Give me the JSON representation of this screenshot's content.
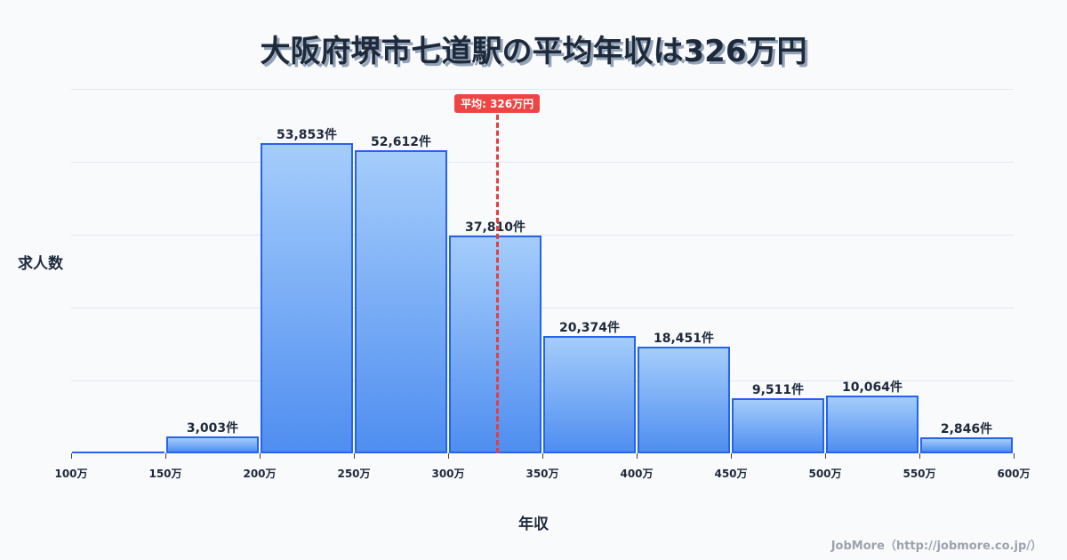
{
  "title": "大阪府堺市七道駅の平均年収は326万円",
  "mean_badge": "平均: 326万円",
  "ylabel": "求人数",
  "xlabel": "年収",
  "credit": "JobMore（http://jobmore.co.jp/）",
  "colors": {
    "bar_border": "#2563eb",
    "bar_top": "#a5cdfb",
    "bar_bottom": "#4f8ef0",
    "mean_line": "#e53e3e",
    "badge": "#ef4444"
  },
  "chart_data": {
    "type": "bar",
    "title": "大阪府堺市七道駅の平均年収は326万円",
    "xlabel": "年収",
    "ylabel": "求人数",
    "categories": [
      "100-150万",
      "150-200万",
      "200-250万",
      "250-300万",
      "300-350万",
      "350-400万",
      "400-450万",
      "450-500万",
      "500-550万",
      "550-600万"
    ],
    "values": [
      120,
      3003,
      53853,
      52612,
      37810,
      20374,
      18451,
      9511,
      10064,
      2846
    ],
    "value_labels": [
      "",
      "3,003件",
      "53,853件",
      "52,612件",
      "37,810件",
      "20,374件",
      "18,451件",
      "9,511件",
      "10,064件",
      "2,846件"
    ],
    "x_ticks": [
      "100万",
      "150万",
      "200万",
      "250万",
      "300万",
      "350万",
      "400万",
      "450万",
      "500万",
      "550万",
      "600万"
    ],
    "mean": 326,
    "mean_label": "平均: 326万円",
    "ylim": [
      0,
      63270
    ],
    "grid": true,
    "legend": "none"
  }
}
